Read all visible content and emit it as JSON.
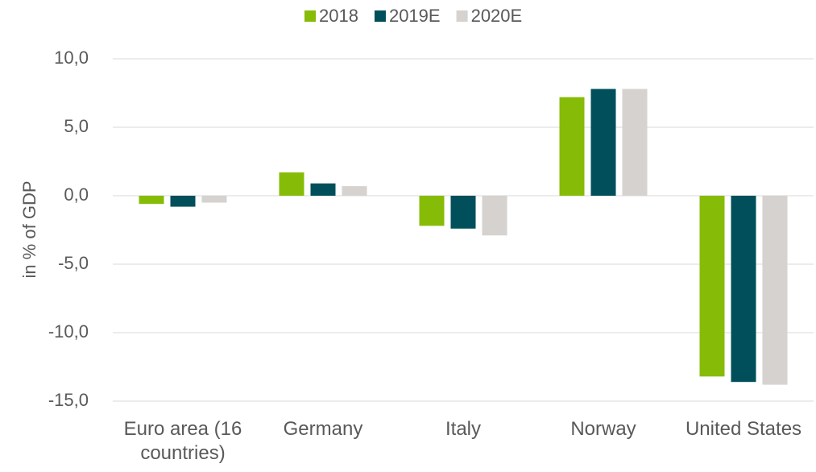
{
  "chart_data": {
    "type": "bar",
    "y_label": "in % of GDP",
    "categories": [
      "Euro area (16 countries)",
      "Germany",
      "Italy",
      "Norway",
      "United States"
    ],
    "series": [
      {
        "name": "2018",
        "color": "#86bc07",
        "values": [
          -0.6,
          1.7,
          -2.2,
          7.2,
          -13.2
        ]
      },
      {
        "name": "2019E",
        "color": "#004f5a",
        "values": [
          -0.8,
          0.9,
          -2.4,
          7.8,
          -13.6
        ]
      },
      {
        "name": "2020E",
        "color": "#d5d2cf",
        "values": [
          -0.5,
          0.7,
          -2.9,
          7.8,
          -13.8
        ]
      }
    ],
    "ylim": [
      -15,
      10
    ],
    "yticks": [
      {
        "value": -15,
        "label": "-15,0"
      },
      {
        "value": -10,
        "label": "-10,0"
      },
      {
        "value": -5,
        "label": "-5,0"
      },
      {
        "value": 0,
        "label": "0,0"
      },
      {
        "value": 5,
        "label": "5,0"
      },
      {
        "value": 10,
        "label": "10,0"
      }
    ],
    "grid": true,
    "legend": "top"
  }
}
